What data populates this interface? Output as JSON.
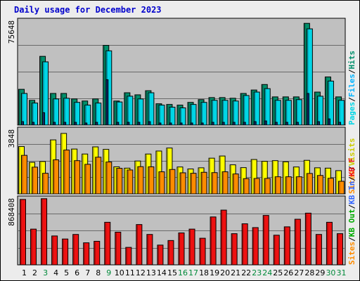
{
  "title": "Daily usage for December 2023",
  "colors": {
    "hits": "#008f6b",
    "files": "#00d6e6",
    "pages": "#00b3ff",
    "visits": "#ffff00",
    "sites": "#ff8c00",
    "kb": "#ee1111",
    "panel_bg": "#c0c0c0",
    "page_bg": "#ececec",
    "title": "#0000cc"
  },
  "chart_data": [
    {
      "type": "bar",
      "panel": "top",
      "max_label": "75648",
      "legend": [
        {
          "text": "Hits",
          "color": "#008f6b"
        },
        {
          "sep": "/"
        },
        {
          "text": "Files",
          "color": "#00b3ff"
        },
        {
          "sep": "/"
        },
        {
          "text": "Pages",
          "color": "#00d6e6"
        }
      ],
      "categories": [
        "1",
        "2",
        "3",
        "4",
        "5",
        "6",
        "7",
        "8",
        "9",
        "10",
        "11",
        "12",
        "13",
        "14",
        "15",
        "16",
        "17",
        "18",
        "19",
        "20",
        "21",
        "22",
        "23",
        "24",
        "25",
        "26",
        "27",
        "28",
        "29",
        "30",
        "31"
      ],
      "series": [
        {
          "name": "Hits",
          "values": [
            26000,
            18000,
            50000,
            23000,
            23000,
            19000,
            17500,
            19000,
            58000,
            17500,
            23500,
            22000,
            25000,
            15500,
            15000,
            14500,
            16500,
            18500,
            20000,
            20000,
            19500,
            23000,
            25500,
            29500,
            20500,
            20500,
            20500,
            74000,
            24000,
            35000,
            20500
          ]
        },
        {
          "name": "Files",
          "values": [
            23000,
            16000,
            46000,
            19000,
            19500,
            16500,
            14500,
            16000,
            54000,
            16800,
            21000,
            19000,
            23500,
            14500,
            13000,
            12500,
            15000,
            16500,
            18000,
            18000,
            17500,
            21500,
            24000,
            26500,
            18000,
            18000,
            18500,
            70000,
            21000,
            32000,
            18000
          ]
        },
        {
          "name": "Pages",
          "values": [
            2500,
            2000,
            9000,
            2000,
            2000,
            2000,
            1500,
            2000,
            33000,
            2000,
            2000,
            2000,
            2500,
            1500,
            1500,
            1500,
            1500,
            1500,
            2000,
            2000,
            2000,
            2000,
            2500,
            3000,
            2000,
            2000,
            2000,
            23000,
            2500,
            4500,
            2000
          ]
        }
      ]
    },
    {
      "type": "bar",
      "panel": "middle",
      "max_label": "3848",
      "legend": [
        {
          "text": "Visits",
          "color": "#cccc00"
        },
        {
          "sep": "/"
        },
        {
          "text": "Sites",
          "color": "#ff8c00"
        }
      ],
      "categories": [
        "1",
        "2",
        "3",
        "4",
        "5",
        "6",
        "7",
        "8",
        "9",
        "10",
        "11",
        "12",
        "13",
        "14",
        "15",
        "16",
        "17",
        "18",
        "19",
        "20",
        "21",
        "22",
        "23",
        "24",
        "25",
        "26",
        "27",
        "28",
        "29",
        "30",
        "31"
      ],
      "series": [
        {
          "name": "Visits",
          "values": [
            2850,
            1900,
            1950,
            3250,
            3640,
            2700,
            2400,
            2830,
            2680,
            1630,
            1550,
            1980,
            2400,
            2580,
            2760,
            1620,
            1500,
            1570,
            2150,
            2280,
            1750,
            1580,
            2070,
            1960,
            2000,
            1930,
            1620,
            2020,
            1570,
            1550,
            1400
          ]
        },
        {
          "name": "Sites",
          "values": [
            2320,
            1610,
            1240,
            2050,
            2640,
            2000,
            1780,
            2210,
            1920,
            1540,
            1440,
            1640,
            1630,
            1330,
            1470,
            1270,
            1240,
            1300,
            1280,
            1330,
            1200,
            920,
            930,
            930,
            1030,
            1030,
            1030,
            1230,
            1110,
            940,
            760
          ]
        }
      ]
    },
    {
      "type": "bar",
      "panel": "bottom",
      "max_label": "868408",
      "legend": [
        {
          "text": "KB F",
          "color": "#ee1111"
        },
        {
          "sep": "/"
        },
        {
          "text": "KB In",
          "color": "#3366ff"
        },
        {
          "sep": "/"
        },
        {
          "text": "KB Out",
          "color": "#00aa00"
        },
        {
          "sep": "/"
        },
        {
          "text": "Sites",
          "color": "#ff8c00"
        }
      ],
      "categories": [
        "1",
        "2",
        "3",
        "4",
        "5",
        "6",
        "7",
        "8",
        "9",
        "10",
        "11",
        "12",
        "13",
        "14",
        "15",
        "16",
        "17",
        "18",
        "19",
        "20",
        "21",
        "22",
        "23",
        "24",
        "25",
        "26",
        "27",
        "28",
        "29",
        "30",
        "31"
      ],
      "series": [
        {
          "name": "KB F",
          "values": [
            860000,
            470000,
            870000,
            380000,
            340000,
            400000,
            290000,
            310000,
            560000,
            430000,
            230000,
            530000,
            400000,
            260000,
            320000,
            420000,
            470000,
            350000,
            630000,
            720000,
            410000,
            540000,
            490000,
            650000,
            390000,
            500000,
            600000,
            680000,
            400000,
            560000,
            410000
          ]
        }
      ]
    }
  ]
}
